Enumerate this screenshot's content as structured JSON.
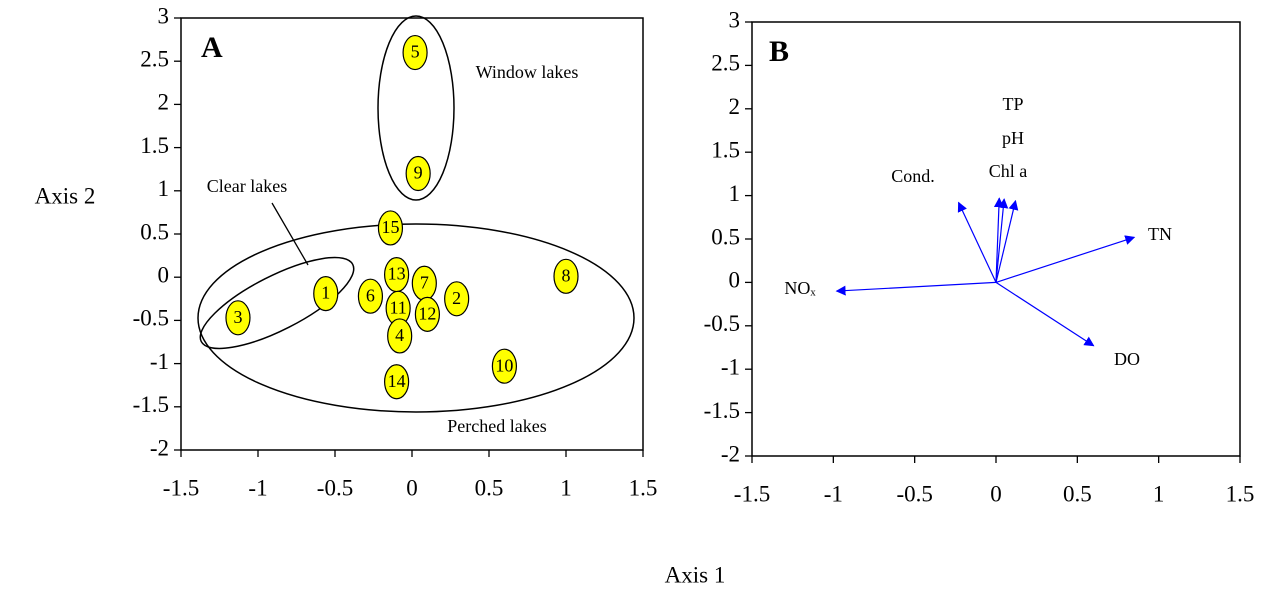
{
  "axis_labels": {
    "x": "Axis 1",
    "y": "Axis 2"
  },
  "chart_data": [
    {
      "type": "scatter",
      "panel": "A",
      "color": "#ffff00",
      "labels": [
        "5",
        "9",
        "15",
        "13",
        "7",
        "6",
        "11",
        "12",
        "2",
        "4",
        "1",
        "3",
        "8",
        "10",
        "14"
      ],
      "x": [
        0.02,
        0.04,
        -0.14,
        -0.1,
        0.08,
        -0.27,
        -0.09,
        0.1,
        0.29,
        -0.08,
        -0.56,
        -1.13,
        1.0,
        0.6,
        -0.1
      ],
      "values": [
        2.6,
        1.2,
        0.57,
        0.03,
        -0.07,
        -0.22,
        -0.36,
        -0.43,
        -0.25,
        -0.68,
        -0.19,
        -0.47,
        0.01,
        -1.03,
        -1.21
      ],
      "annotations": [
        "Window lakes",
        "Clear lakes",
        "Perched lakes"
      ],
      "xlim": [
        -1.5,
        1.5
      ],
      "xticks": [
        -1.5,
        -1,
        -0.5,
        0,
        0.5,
        1,
        1.5
      ],
      "ylim": [
        -2,
        3
      ],
      "yticks": [
        -2,
        -1.5,
        -1,
        -0.5,
        0,
        0.5,
        1,
        1.5,
        2,
        2.5,
        3
      ]
    },
    {
      "type": "vector",
      "panel": "B",
      "color": "#0000ff",
      "categories": [
        "NOₓ",
        "Cond.",
        "TP",
        "pH",
        "Chl a",
        "TN",
        "DO"
      ],
      "x": [
        -0.98,
        -0.23,
        0.02,
        0.05,
        0.12,
        0.85,
        0.6
      ],
      "values": [
        -0.1,
        0.92,
        0.97,
        0.96,
        0.94,
        0.52,
        -0.73
      ],
      "xlim": [
        -1.5,
        1.5
      ],
      "xticks": [
        -1.5,
        -1,
        -0.5,
        0,
        0.5,
        1,
        1.5
      ],
      "ylim": [
        -2,
        3
      ],
      "yticks": [
        -2,
        -1.5,
        -1,
        -0.5,
        0,
        0.5,
        1,
        1.5,
        2,
        2.5,
        3
      ]
    }
  ]
}
